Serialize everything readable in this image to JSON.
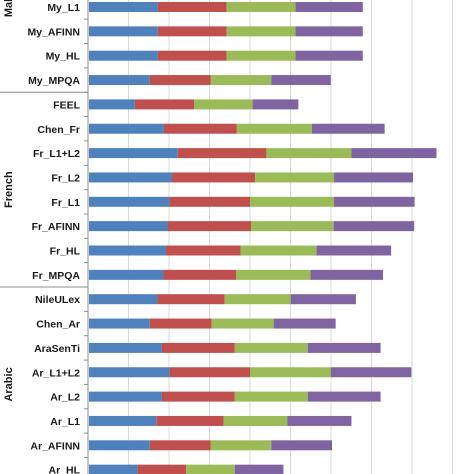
{
  "chart_data": {
    "type": "bar",
    "orientation": "horizontal",
    "stacked": true,
    "grid": true,
    "xlim": [
      0,
      1
    ],
    "series": [
      {
        "color": "#4f81bd"
      },
      {
        "color": "#c0504d"
      },
      {
        "color": "#9bbb59"
      },
      {
        "color": "#8064a2"
      }
    ],
    "groups": [
      {
        "name": "Mal",
        "categories": [
          "My_L1",
          "My_AFINN",
          "My_HL",
          "My_MPQA"
        ]
      },
      {
        "name": "French",
        "categories": [
          "FEEL",
          "Chen_Fr",
          "Fr_L1+L2",
          "Fr_L2",
          "Fr_L1",
          "Fr_AFINN",
          "Fr_HL",
          "Fr_MPQA"
        ]
      },
      {
        "name": "Arabic",
        "categories": [
          "NileULex",
          "Chen_Ar",
          "AraSenTi",
          "Ar_L1+L2",
          "Ar_L2",
          "Ar_L1",
          "Ar_AFINN",
          "Ar_HL"
        ]
      }
    ],
    "rows": [
      {
        "label": "My_L1",
        "values": [
          0.17,
          0.17,
          0.17,
          0.166
        ]
      },
      {
        "label": "My_AFINN",
        "values": [
          0.17,
          0.17,
          0.17,
          0.166
        ]
      },
      {
        "label": "My_HL",
        "values": [
          0.17,
          0.17,
          0.17,
          0.166
        ]
      },
      {
        "label": "My_MPQA",
        "values": [
          0.15,
          0.15,
          0.15,
          0.147
        ]
      },
      {
        "label": "FEEL",
        "values": [
          0.113,
          0.147,
          0.144,
          0.113
        ]
      },
      {
        "label": "Chen_Fr",
        "values": [
          0.185,
          0.18,
          0.185,
          0.18
        ]
      },
      {
        "label": "Fr_L1+L2",
        "values": [
          0.219,
          0.219,
          0.21,
          0.21
        ]
      },
      {
        "label": "Fr_L2",
        "values": [
          0.205,
          0.205,
          0.195,
          0.195
        ]
      },
      {
        "label": "Fr_L1",
        "values": [
          0.199,
          0.199,
          0.207,
          0.199
        ]
      },
      {
        "label": "Fr_AFINN",
        "values": [
          0.195,
          0.205,
          0.204,
          0.199
        ]
      },
      {
        "label": "Fr_HL",
        "values": [
          0.19,
          0.184,
          0.188,
          0.184
        ]
      },
      {
        "label": "Fr_MPQA",
        "values": [
          0.184,
          0.179,
          0.184,
          0.179
        ]
      },
      {
        "label": "NileULex",
        "values": [
          0.169,
          0.166,
          0.163,
          0.161
        ]
      },
      {
        "label": "Chen_Ar",
        "values": [
          0.15,
          0.153,
          0.153,
          0.153
        ]
      },
      {
        "label": "AraSenTi",
        "values": [
          0.18,
          0.18,
          0.18,
          0.18
        ]
      },
      {
        "label": "Ar_L1+L2",
        "values": [
          0.199,
          0.199,
          0.199,
          0.199
        ]
      },
      {
        "label": "Ar_L2",
        "values": [
          0.18,
          0.18,
          0.18,
          0.18
        ]
      },
      {
        "label": "Ar_L1",
        "values": [
          0.166,
          0.166,
          0.158,
          0.158
        ]
      },
      {
        "label": "Ar_AFINN",
        "values": [
          0.15,
          0.15,
          0.15,
          0.15
        ]
      },
      {
        "label": "Ar_HL",
        "values": [
          0.12,
          0.12,
          0.12,
          0.12
        ]
      }
    ]
  }
}
